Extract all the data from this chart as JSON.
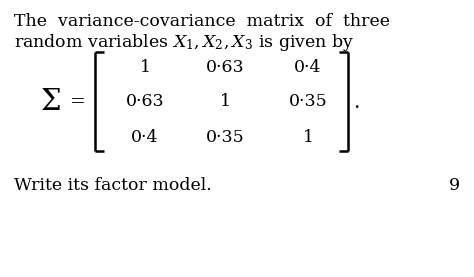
{
  "line1": "The  variance-covariance  matrix  of  three",
  "line2_plain": "random variables ",
  "line2_math": "$X_1, X_2, X_3$",
  "line2_end": " is given by",
  "matrix": [
    [
      "1",
      "0·63",
      "0·4"
    ],
    [
      "0·63",
      "1",
      "0·35"
    ],
    [
      "0·4",
      "0·35",
      "1"
    ]
  ],
  "bottom_text": "Write its factor model.",
  "page_number": "9",
  "bg_color": "#ffffff",
  "text_color": "#000000",
  "font_size_main": 12.5,
  "font_size_matrix": 12.5
}
